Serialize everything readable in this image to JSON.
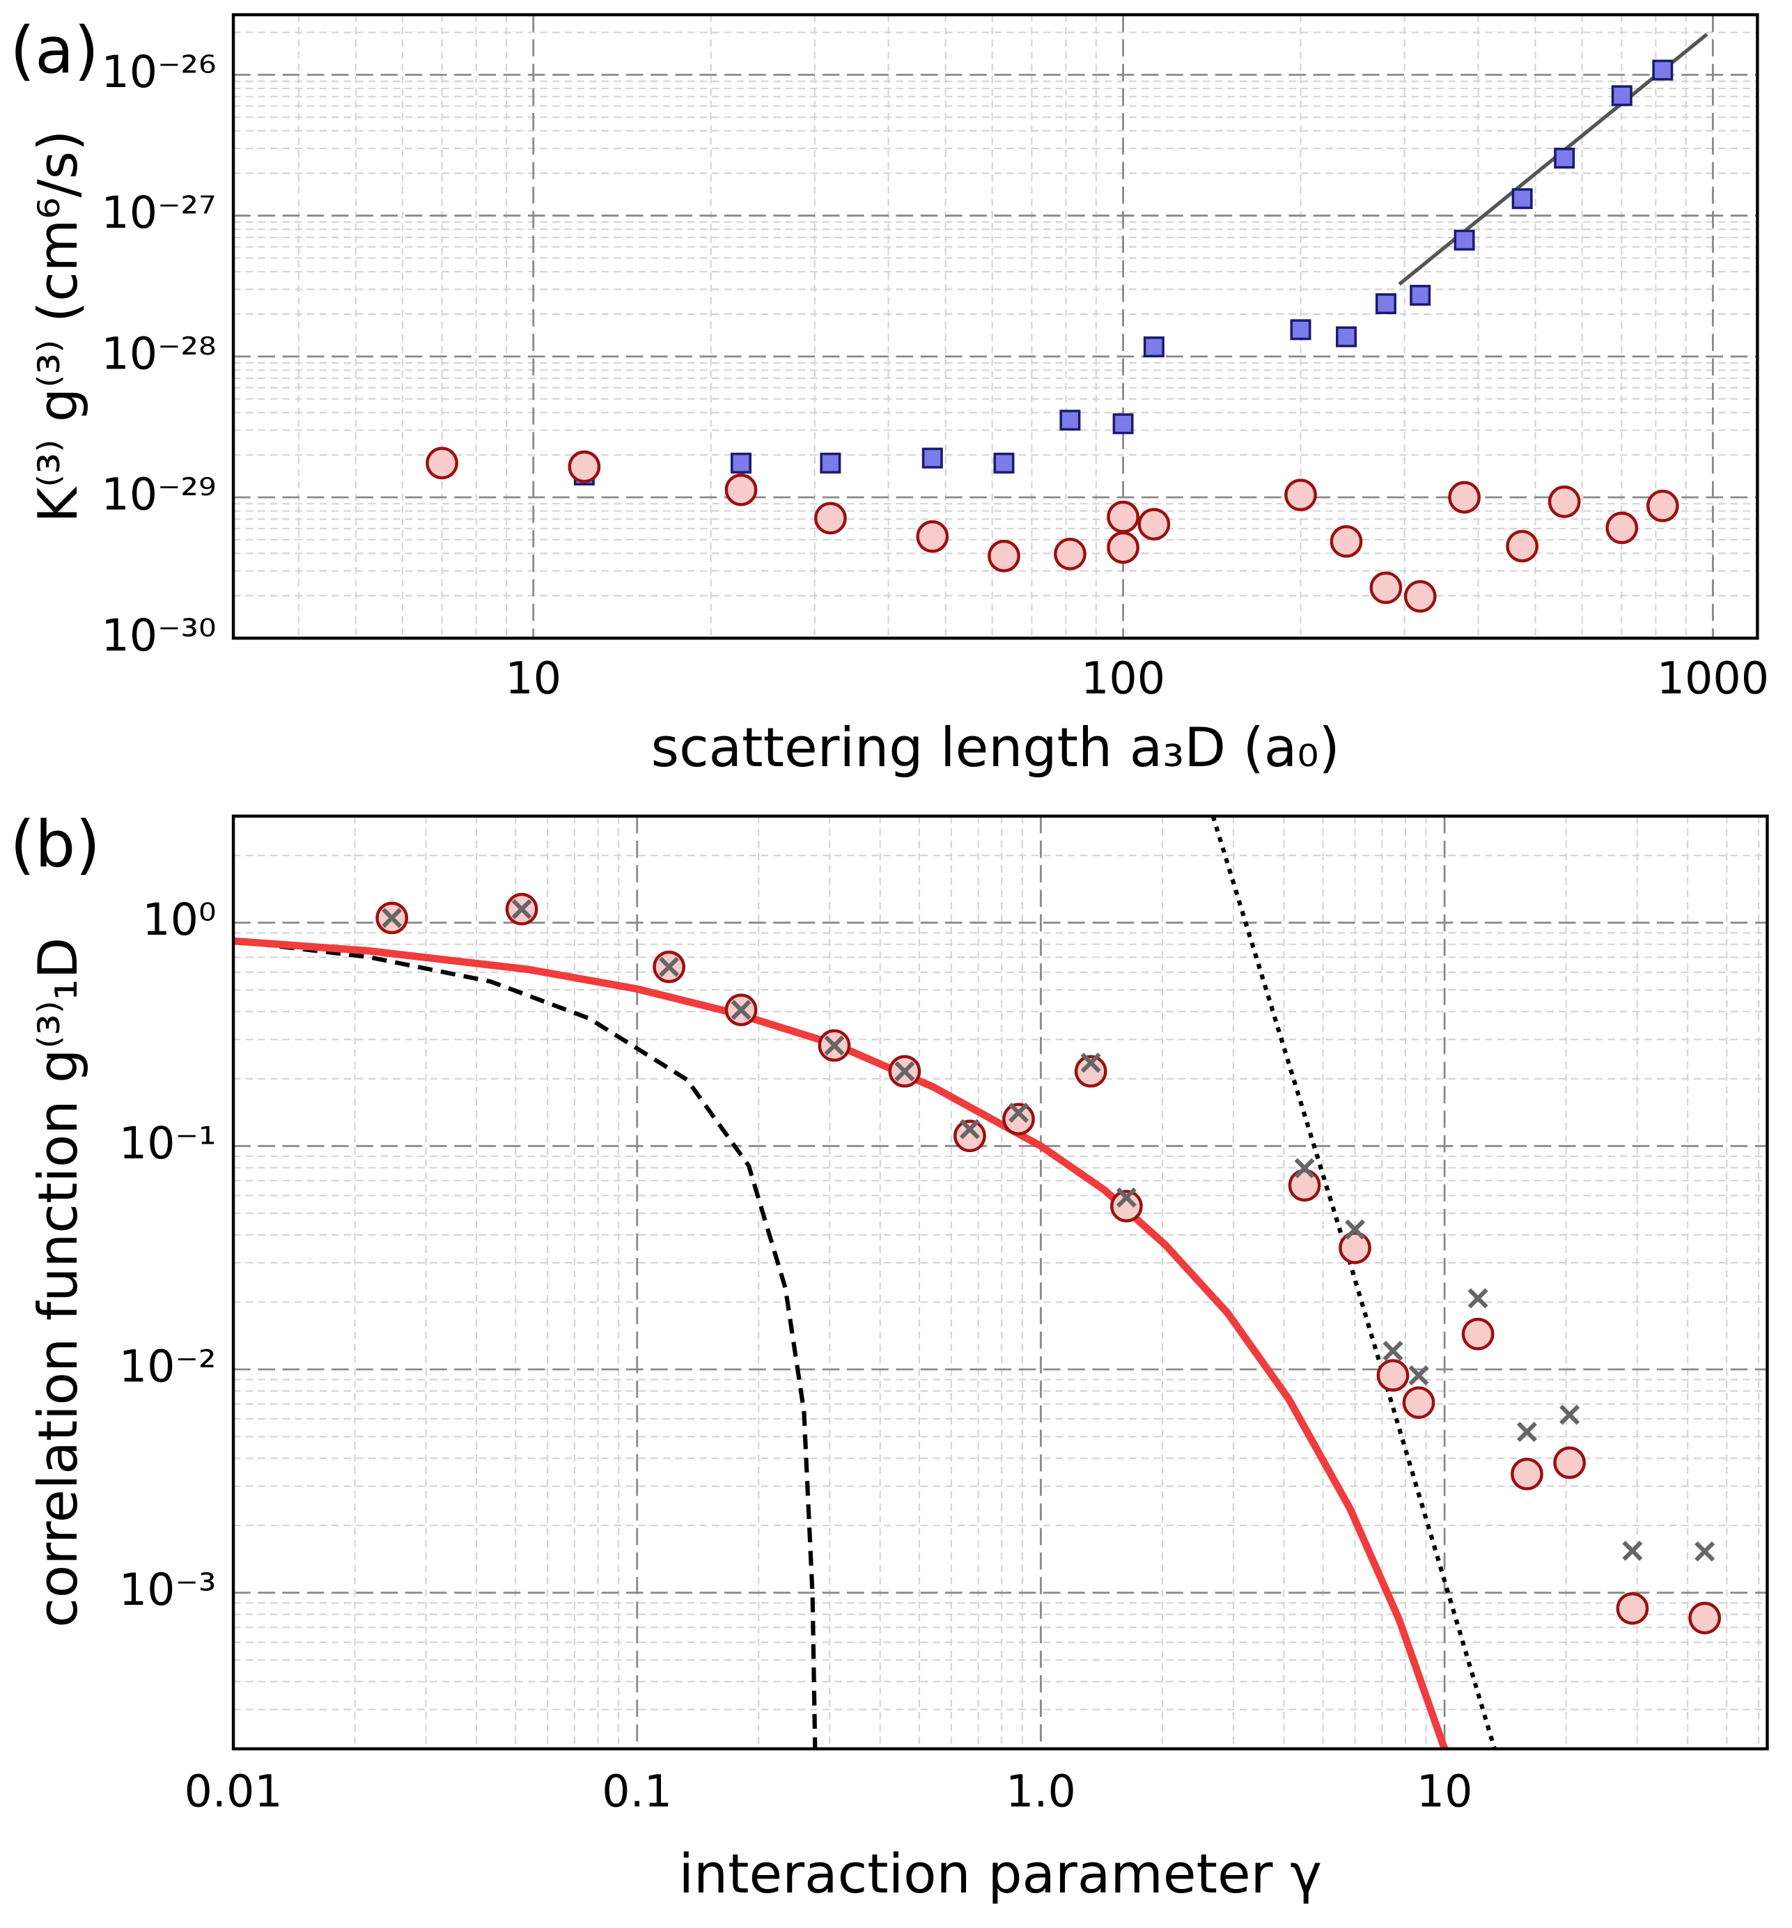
{
  "chart_data": [
    {
      "type": "scatter",
      "panel_label": "(a)",
      "xlabel": "scattering length a₃D (a₀)",
      "ylabel": "K⁽³⁾ g⁽³⁾ (cm⁶/s)",
      "xscale": "log",
      "yscale": "log",
      "grid": true,
      "minor_grid": true,
      "xlim": [
        3.1,
        1190
      ],
      "ylim": [
        1e-30,
        2.67e-26
      ],
      "xticks": [
        10,
        100,
        1000
      ],
      "yticks": [
        {
          "value": 1e-30,
          "label": "10⁻³⁰"
        },
        {
          "value": 1e-29,
          "label": "10⁻²⁹"
        },
        {
          "value": 1e-28,
          "label": "10⁻²⁸"
        },
        {
          "value": 1e-27,
          "label": "10⁻²⁷"
        },
        {
          "value": 1e-26,
          "label": "10⁻²⁶"
        }
      ],
      "series": [
        {
          "style": "marker",
          "marker": "square",
          "color": "#7b7bea",
          "edgecolor": "#1a1a6e",
          "x": [
            7.0,
            12.2,
            22.5,
            31.9,
            47.5,
            62.8,
            81.3,
            100,
            112.8,
            200,
            239,
            279,
            319,
            379,
            475,
            560,
            701,
            822
          ],
          "values": [
            1.68e-29,
            1.44e-29,
            1.75e-29,
            1.75e-29,
            1.9e-29,
            1.75e-29,
            3.53e-29,
            3.33e-29,
            1.17e-28,
            1.55e-28,
            1.38e-28,
            2.37e-28,
            2.72e-28,
            6.7e-28,
            1.32e-27,
            2.56e-27,
            7.11e-27,
            1.08e-26
          ]
        },
        {
          "style": "marker",
          "marker": "circle",
          "color": "#f9cccc",
          "edgecolor": "#9b1010",
          "x": [
            7.0,
            12.2,
            22.5,
            31.9,
            47.5,
            62.8,
            81.3,
            100,
            100,
            112.8,
            200,
            239,
            279,
            319,
            379,
            475,
            560,
            701,
            822
          ],
          "values": [
            1.75e-29,
            1.65e-29,
            1.13e-29,
            7.11e-30,
            5.27e-30,
            3.83e-30,
            3.96e-30,
            7.26e-30,
            4.4e-30,
            6.44e-30,
            1.04e-29,
            4.86e-30,
            2.28e-30,
            1.98e-30,
            1e-29,
            4.5e-30,
            9.3e-30,
            6.07e-30,
            8.69e-30
          ]
        },
        {
          "style": "line",
          "dash": "solid",
          "color": "#555555",
          "width": 3,
          "x": [
            294,
            977
          ],
          "values": [
            3.26e-28,
            1.94e-26
          ]
        }
      ]
    },
    {
      "type": "scatter",
      "panel_label": "(b)",
      "xlabel": "interaction parameter γ",
      "ylabel": "correlation function  g⁽³⁾₁D",
      "xscale": "log",
      "yscale": "log",
      "grid": true,
      "minor_grid": true,
      "xlim": [
        0.01,
        63
      ],
      "ylim": [
        0.0002,
        3
      ],
      "xticks": [
        0.01,
        0.1,
        {
          "value": 1,
          "label": "1.0"
        },
        10
      ],
      "yticks": [
        {
          "value": 0.001,
          "label": "10⁻³"
        },
        {
          "value": 0.01,
          "label": "10⁻²"
        },
        {
          "value": 0.1,
          "label": "10⁻¹"
        },
        {
          "value": 1,
          "label": "10⁰"
        }
      ],
      "series": [
        {
          "style": "line",
          "dash": "dashed",
          "color": "#000000",
          "width": 3.5,
          "x": [
            0.01,
            0.0216,
            0.0434,
            0.076,
            0.133,
            0.189,
            0.233,
            0.259,
            0.272,
            0.276
          ],
          "values": [
            0.828,
            0.702,
            0.545,
            0.373,
            0.198,
            0.0817,
            0.0231,
            0.0065,
            0.000976,
            0.0002
          ]
        },
        {
          "style": "line",
          "dash": "dotted",
          "color": "#000000",
          "width": 3.5,
          "x": [
            2.67,
            5.84,
            13.3
          ],
          "values": [
            3,
            0.0297,
            0.0002
          ]
        },
        {
          "style": "line",
          "dash": "solid",
          "color": "#f03c3c",
          "width": 6,
          "x": [
            0.01,
            0.0216,
            0.0537,
            0.1,
            0.176,
            0.308,
            0.541,
            1.0,
            1.44,
            2.04,
            2.9,
            4.11,
            5.84,
            7.72,
            10.0
          ],
          "values": [
            0.828,
            0.748,
            0.618,
            0.505,
            0.392,
            0.286,
            0.184,
            0.1,
            0.0634,
            0.0359,
            0.0179,
            0.00738,
            0.00237,
            0.000757,
            0.0002
          ]
        },
        {
          "style": "marker",
          "marker": "circle",
          "color": "#f9cccc",
          "edgecolor": "#9b1010",
          "x": [
            0.0247,
            0.0518,
            0.12,
            0.181,
            0.308,
            0.46,
            0.667,
            0.881,
            1.33,
            1.63,
            4.5,
            6.0,
            7.45,
            8.63,
            12.1,
            16.0,
            20.4,
            29.2,
            44.1
          ],
          "values": [
            1.05,
            1.15,
            0.634,
            0.407,
            0.282,
            0.216,
            0.111,
            0.132,
            0.216,
            0.0538,
            0.0667,
            0.035,
            0.0094,
            0.0071,
            0.0144,
            0.0034,
            0.00382,
            0.00085,
            0.00077
          ]
        },
        {
          "style": "marker",
          "marker": "cross",
          "color": "#666666",
          "x": [
            0.0247,
            0.0518,
            0.12,
            0.181,
            0.308,
            0.46,
            0.667,
            0.881,
            1.33,
            1.63,
            4.5,
            6.0,
            7.45,
            8.63,
            12.1,
            16.0,
            20.4,
            29.2,
            44.1
          ],
          "values": [
            1.05,
            1.15,
            0.634,
            0.407,
            0.282,
            0.216,
            0.119,
            0.141,
            0.236,
            0.0588,
            0.0796,
            0.0423,
            0.0121,
            0.0094,
            0.0208,
            0.00525,
            0.00626,
            0.00154,
            0.00153
          ]
        }
      ]
    }
  ]
}
